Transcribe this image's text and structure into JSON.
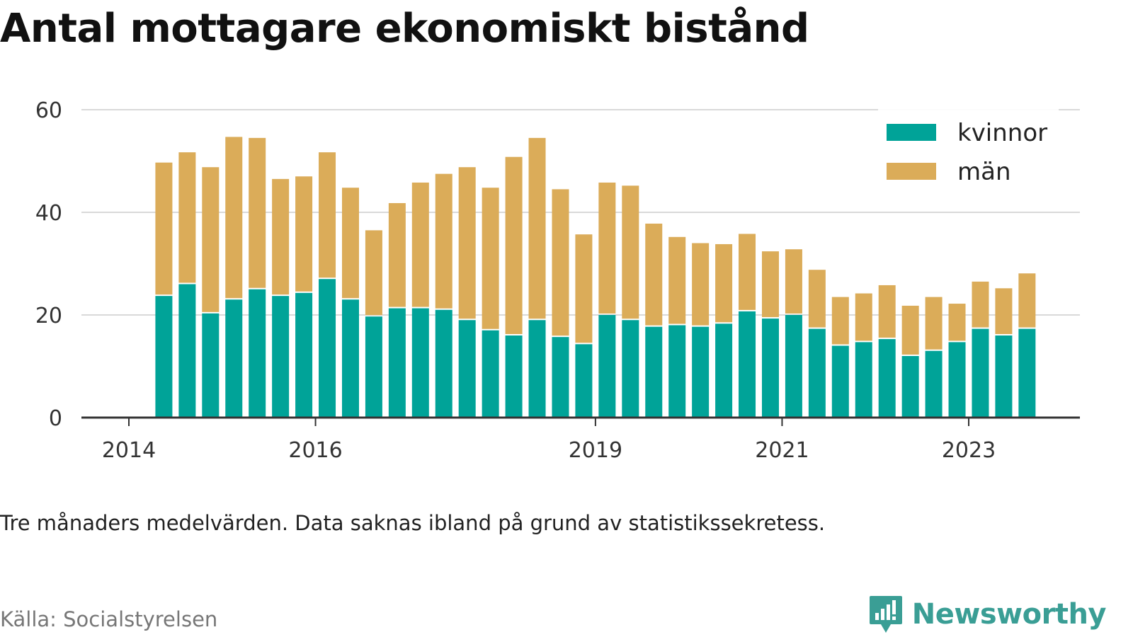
{
  "title": "Antal mottagare ekonomiskt bistånd",
  "note": "Tre månaders medelvärden. Data saknas ibland på grund av statistikssekretess.",
  "source": "Källa: Socialstyrelsen",
  "brand": {
    "name": "Newsworthy",
    "icon": "newsworthy-logo-icon",
    "color": "#3a9e95"
  },
  "chart_data": {
    "type": "bar",
    "stacked": true,
    "categories": [
      "2014Q2",
      "2014Q3",
      "2014Q4",
      "2015Q1",
      "2015Q2",
      "2015Q3",
      "2015Q4",
      "2016Q1",
      "2016Q2",
      "2016Q3",
      "2016Q4",
      "2017Q1",
      "2017Q2",
      "2017Q3",
      "2017Q4",
      "2018Q1",
      "2018Q2",
      "2018Q3",
      "2018Q4",
      "2019Q1",
      "2019Q2",
      "2019Q3",
      "2019Q4",
      "2020Q1",
      "2020Q2",
      "2020Q3",
      "2020Q4",
      "2021Q1",
      "2021Q2",
      "2021Q3",
      "2021Q4",
      "2022Q1",
      "2022Q2",
      "2022Q3",
      "2022Q4",
      "2023Q1",
      "2023Q2",
      "2023Q3"
    ],
    "series": [
      {
        "name": "kvinnor",
        "color": "#00a398",
        "values": [
          23.7,
          26.0,
          20.3,
          23.0,
          25.0,
          23.7,
          24.3,
          27.0,
          23.0,
          19.7,
          21.3,
          21.3,
          21.0,
          19.0,
          17.0,
          16.0,
          19.0,
          15.7,
          14.3,
          20.0,
          19.0,
          17.7,
          18.0,
          17.7,
          18.3,
          20.7,
          19.3,
          20.0,
          17.3,
          14.0,
          14.7,
          15.3,
          12.0,
          13.0,
          14.7,
          17.3,
          16.0,
          17.3
        ]
      },
      {
        "name": "män",
        "color": "#dbac59",
        "values": [
          26.0,
          25.7,
          28.5,
          31.7,
          29.5,
          22.8,
          22.7,
          24.7,
          21.8,
          16.8,
          20.5,
          24.5,
          26.5,
          29.8,
          27.8,
          34.8,
          35.5,
          28.8,
          21.4,
          25.8,
          26.2,
          20.1,
          17.2,
          16.3,
          15.5,
          15.1,
          13.1,
          12.8,
          11.5,
          9.5,
          9.5,
          10.5,
          9.8,
          10.5,
          7.5,
          9.2,
          9.2,
          10.8
        ]
      }
    ],
    "x_ticks": [
      "2014",
      "2016",
      "2019",
      "2021",
      "2023"
    ],
    "y_ticks": [
      0,
      20,
      40,
      60
    ],
    "ylim": [
      0,
      60
    ],
    "grid": true,
    "legend_position": "top-right"
  }
}
